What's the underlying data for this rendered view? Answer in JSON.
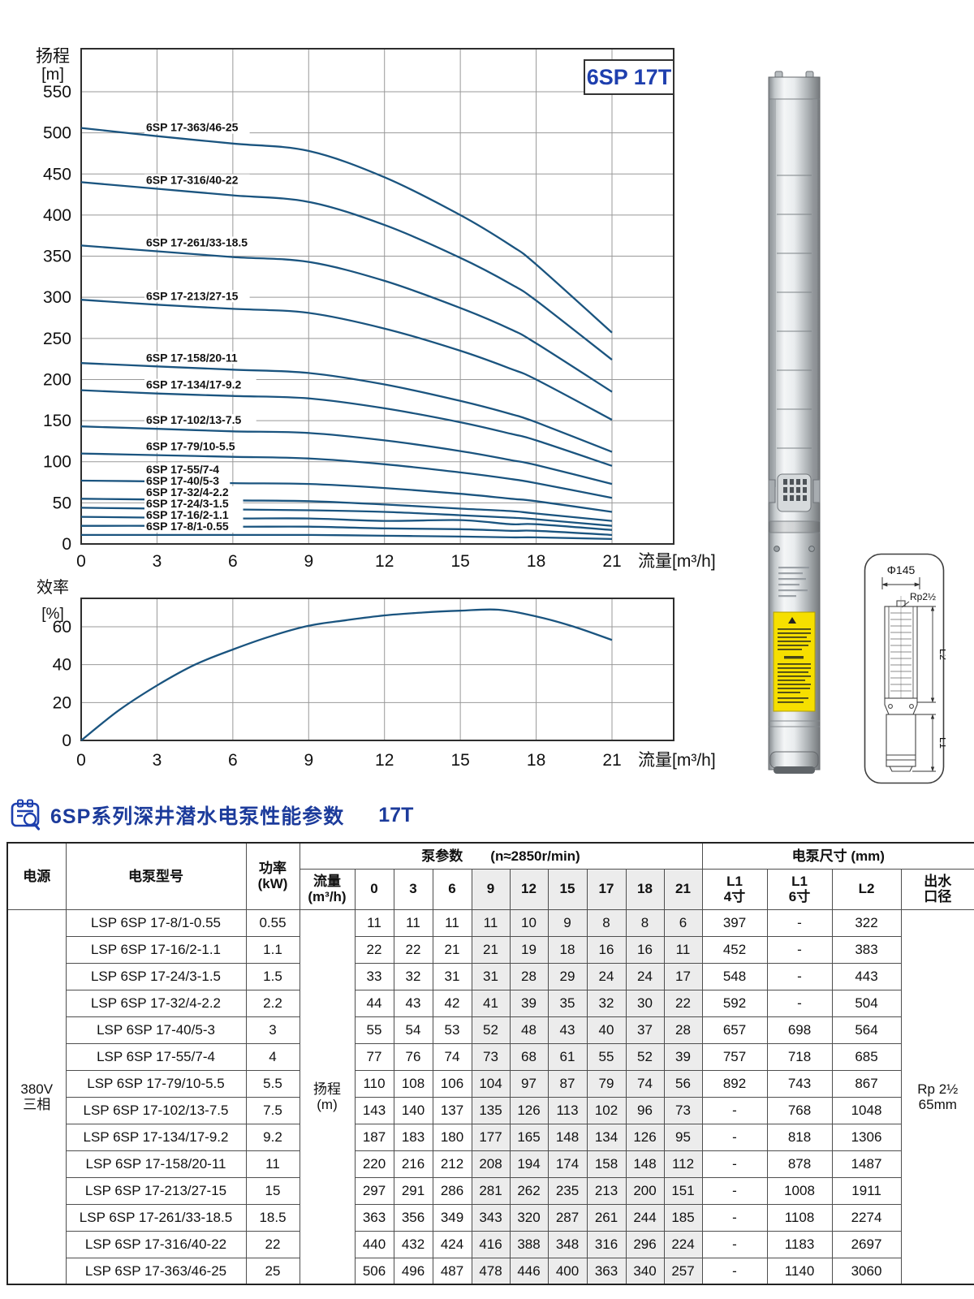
{
  "badge": {
    "label": "6SP 17T",
    "color": "#1e3fae"
  },
  "chart_data": [
    {
      "id": "head_chart",
      "type": "line",
      "title": "6SP 17T head-flow curves",
      "ylabel": [
        "扬程",
        "[m]"
      ],
      "xlabel": "流量[m³/h]",
      "x_ticks": [
        0,
        3,
        6,
        9,
        12,
        15,
        18,
        21
      ],
      "y_ticks": [
        0,
        50,
        100,
        150,
        200,
        250,
        300,
        350,
        400,
        450,
        500,
        550
      ],
      "xlim": [
        0,
        23.4
      ],
      "ylim": [
        0,
        602
      ],
      "grid": true,
      "line_color": "#1a547f",
      "x": [
        0,
        3,
        6,
        9,
        12,
        15,
        17,
        18,
        21
      ],
      "series": [
        {
          "name": "6SP 17-363/46-25",
          "values": [
            506,
            496,
            487,
            478,
            446,
            400,
            363,
            340,
            257
          ]
        },
        {
          "name": "6SP 17-316/40-22",
          "values": [
            440,
            432,
            424,
            416,
            388,
            348,
            316,
            296,
            224
          ]
        },
        {
          "name": "6SP 17-261/33-18.5",
          "values": [
            363,
            356,
            349,
            343,
            320,
            287,
            261,
            244,
            185
          ]
        },
        {
          "name": "6SP 17-213/27-15",
          "values": [
            297,
            291,
            286,
            281,
            262,
            235,
            213,
            200,
            151
          ]
        },
        {
          "name": "6SP 17-158/20-11",
          "values": [
            220,
            216,
            212,
            208,
            194,
            174,
            158,
            148,
            112
          ]
        },
        {
          "name": "6SP 17-134/17-9.2",
          "values": [
            187,
            183,
            180,
            177,
            165,
            148,
            134,
            126,
            95
          ]
        },
        {
          "name": "6SP 17-102/13-7.5",
          "values": [
            143,
            140,
            137,
            135,
            126,
            113,
            102,
            96,
            73
          ]
        },
        {
          "name": "6SP 17-79/10-5.5",
          "values": [
            110,
            108,
            106,
            104,
            97,
            87,
            79,
            74,
            56
          ]
        },
        {
          "name": "6SP 17-55/7-4",
          "values": [
            77,
            76,
            74,
            73,
            68,
            61,
            55,
            52,
            39
          ]
        },
        {
          "name": "6SP 17-40/5-3",
          "values": [
            55,
            54,
            53,
            52,
            48,
            43,
            40,
            37,
            28
          ]
        },
        {
          "name": "6SP 17-32/4-2.2",
          "values": [
            44,
            43,
            42,
            41,
            39,
            35,
            32,
            30,
            22
          ]
        },
        {
          "name": "6SP 17-24/3-1.5",
          "values": [
            33,
            32,
            31,
            31,
            28,
            29,
            24,
            24,
            17
          ]
        },
        {
          "name": "6SP 17-16/2-1.1",
          "values": [
            22,
            22,
            21,
            21,
            19,
            18,
            16,
            16,
            11
          ]
        },
        {
          "name": "6SP 17-8/1-0.55",
          "values": [
            11,
            11,
            11,
            11,
            10,
            9,
            8,
            8,
            6
          ]
        }
      ]
    },
    {
      "id": "eff_chart",
      "type": "line",
      "title": "efficiency curve",
      "ylabel": [
        "效率",
        "[%]"
      ],
      "xlabel": "流量[m³/h]",
      "x_ticks": [
        0,
        3,
        6,
        9,
        12,
        15,
        18,
        21
      ],
      "y_ticks": [
        0,
        20,
        40,
        60
      ],
      "xlim": [
        0,
        23.4
      ],
      "ylim": [
        0,
        75
      ],
      "grid": true,
      "line_color": "#1a547f",
      "x": [
        0,
        1.5,
        3,
        4.5,
        6,
        7.5,
        9,
        10.5,
        12,
        13.5,
        15,
        16.5,
        18,
        19.5,
        21
      ],
      "values": [
        0,
        16,
        29,
        40,
        48,
        55,
        60.5,
        63.5,
        66,
        67.5,
        68.5,
        69,
        65.5,
        60,
        53
      ]
    }
  ],
  "section_title": {
    "text": "6SP系列深井潜水电泵性能参数",
    "suffix": "17T"
  },
  "diagram": {
    "diameter_label": "Φ145",
    "thread_label": "Rp2½",
    "l2_label": "L2",
    "l1_label": "L1"
  },
  "table": {
    "col_power_source": "电源",
    "col_model": "电泵型号",
    "col_power": [
      "功率",
      "(kW)"
    ],
    "group_pump_params": "泵参数",
    "speed_note": "(n≈2850r/min)",
    "col_flow": [
      "流量",
      "(m³/h)"
    ],
    "flow_values": [
      "0",
      "3",
      "6",
      "9",
      "12",
      "15",
      "17",
      "18",
      "21"
    ],
    "group_dimensions": "电泵尺寸  (mm)",
    "col_l1_4": [
      "L1",
      "4寸"
    ],
    "col_l1_6": [
      "L1",
      "6寸"
    ],
    "col_l2": "L2",
    "col_outlet": [
      "出水",
      "口径"
    ],
    "power_source_value": [
      "380V",
      "三相"
    ],
    "param_row_label": [
      "扬程",
      "(m)"
    ],
    "outlet_value": [
      "Rp 2½",
      "65mm"
    ],
    "rows": [
      {
        "model": "LSP 6SP 17-8/1-0.55",
        "power": "0.55",
        "heads": [
          "11",
          "11",
          "11",
          "11",
          "10",
          "9",
          "8",
          "8",
          "6"
        ],
        "l1_4": "397",
        "l1_6": "-",
        "l2": "322"
      },
      {
        "model": "LSP 6SP 17-16/2-1.1",
        "power": "1.1",
        "heads": [
          "22",
          "22",
          "21",
          "21",
          "19",
          "18",
          "16",
          "16",
          "11"
        ],
        "l1_4": "452",
        "l1_6": "-",
        "l2": "383"
      },
      {
        "model": "LSP 6SP 17-24/3-1.5",
        "power": "1.5",
        "heads": [
          "33",
          "32",
          "31",
          "31",
          "28",
          "29",
          "24",
          "24",
          "17"
        ],
        "l1_4": "548",
        "l1_6": "-",
        "l2": "443"
      },
      {
        "model": "LSP 6SP 17-32/4-2.2",
        "power": "2.2",
        "heads": [
          "44",
          "43",
          "42",
          "41",
          "39",
          "35",
          "32",
          "30",
          "22"
        ],
        "l1_4": "592",
        "l1_6": "-",
        "l2": "504"
      },
      {
        "model": "LSP 6SP 17-40/5-3",
        "power": "3",
        "heads": [
          "55",
          "54",
          "53",
          "52",
          "48",
          "43",
          "40",
          "37",
          "28"
        ],
        "l1_4": "657",
        "l1_6": "698",
        "l2": "564"
      },
      {
        "model": "LSP 6SP 17-55/7-4",
        "power": "4",
        "heads": [
          "77",
          "76",
          "74",
          "73",
          "68",
          "61",
          "55",
          "52",
          "39"
        ],
        "l1_4": "757",
        "l1_6": "718",
        "l2": "685"
      },
      {
        "model": "LSP 6SP 17-79/10-5.5",
        "power": "5.5",
        "heads": [
          "110",
          "108",
          "106",
          "104",
          "97",
          "87",
          "79",
          "74",
          "56"
        ],
        "l1_4": "892",
        "l1_6": "743",
        "l2": "867"
      },
      {
        "model": "LSP 6SP 17-102/13-7.5",
        "power": "7.5",
        "heads": [
          "143",
          "140",
          "137",
          "135",
          "126",
          "113",
          "102",
          "96",
          "73"
        ],
        "l1_4": "-",
        "l1_6": "768",
        "l2": "1048"
      },
      {
        "model": "LSP 6SP 17-134/17-9.2",
        "power": "9.2",
        "heads": [
          "187",
          "183",
          "180",
          "177",
          "165",
          "148",
          "134",
          "126",
          "95"
        ],
        "l1_4": "-",
        "l1_6": "818",
        "l2": "1306"
      },
      {
        "model": "LSP 6SP 17-158/20-11",
        "power": "11",
        "heads": [
          "220",
          "216",
          "212",
          "208",
          "194",
          "174",
          "158",
          "148",
          "112"
        ],
        "l1_4": "-",
        "l1_6": "878",
        "l2": "1487"
      },
      {
        "model": "LSP 6SP 17-213/27-15",
        "power": "15",
        "heads": [
          "297",
          "291",
          "286",
          "281",
          "262",
          "235",
          "213",
          "200",
          "151"
        ],
        "l1_4": "-",
        "l1_6": "1008",
        "l2": "1911"
      },
      {
        "model": "LSP 6SP 17-261/33-18.5",
        "power": "18.5",
        "heads": [
          "363",
          "356",
          "349",
          "343",
          "320",
          "287",
          "261",
          "244",
          "185"
        ],
        "l1_4": "-",
        "l1_6": "1108",
        "l2": "2274"
      },
      {
        "model": "LSP 6SP 17-316/40-22",
        "power": "22",
        "heads": [
          "440",
          "432",
          "424",
          "416",
          "388",
          "348",
          "316",
          "296",
          "224"
        ],
        "l1_4": "-",
        "l1_6": "1183",
        "l2": "2697"
      },
      {
        "model": "LSP 6SP 17-363/46-25",
        "power": "25",
        "heads": [
          "506",
          "496",
          "487",
          "478",
          "446",
          "400",
          "363",
          "340",
          "257"
        ],
        "l1_4": "-",
        "l1_6": "1140",
        "l2": "3060"
      }
    ]
  }
}
